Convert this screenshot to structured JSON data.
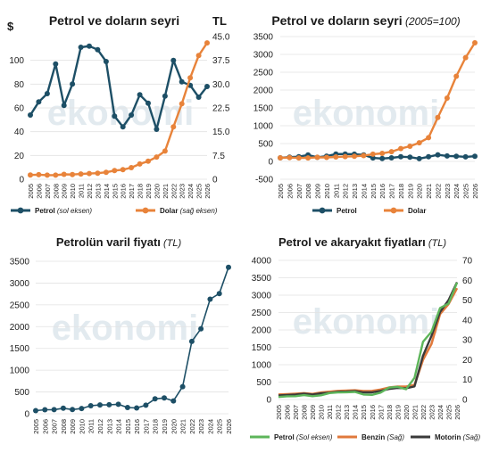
{
  "years": [
    "2005",
    "2006",
    "2007",
    "2008",
    "2009",
    "2010",
    "2011",
    "2012",
    "2013",
    "2014",
    "2015",
    "2016",
    "2017",
    "2018",
    "2019",
    "2020",
    "2021",
    "2022",
    "2023",
    "2024",
    "2025",
    "2026"
  ],
  "watermark": "ekonomi",
  "colors": {
    "petrol_usd": "#1d4f66",
    "dollar": "#e8833a",
    "oil_tl": "#1d4f66",
    "petrol_green": "#5db55a",
    "benzin": "#e0793c",
    "motorin": "#3a3a3a",
    "grid": "#e2e2e2",
    "watermark": "#d9e3ea"
  },
  "chart_data": [
    {
      "id": "c1",
      "type": "line",
      "title": "Petrol ve doların seyri",
      "left_axis_label": "$",
      "right_axis_label": "TL",
      "y_left_ticks": [
        "0",
        "20",
        "40",
        "60",
        "80",
        "100"
      ],
      "y_right_ticks": [
        "0",
        "7.5",
        "15.0",
        "22.5",
        "30.0",
        "37.5",
        "45.0"
      ],
      "ylim_left": [
        0,
        120
      ],
      "ylim_right": [
        0,
        45
      ],
      "x": [
        "2005",
        "2006",
        "2007",
        "2008",
        "2009",
        "2010",
        "2011",
        "2012",
        "2013",
        "2014",
        "2015",
        "2016",
        "2017",
        "2018",
        "2019",
        "2020",
        "2021",
        "2022",
        "2023",
        "2024",
        "2025",
        "2026"
      ],
      "series": [
        {
          "name": "Petrol",
          "name_note": "(sol eksen)",
          "axis": "left",
          "values": [
            54,
            65,
            72,
            97,
            62,
            80,
            111,
            112,
            109,
            99,
            53,
            44,
            54,
            71,
            64,
            42,
            70,
            100,
            82,
            79,
            69,
            78
          ]
        },
        {
          "name": "Dolar",
          "name_note": "(sağ eksen)",
          "axis": "right",
          "values": [
            1.34,
            1.43,
            1.3,
            1.3,
            1.55,
            1.5,
            1.67,
            1.8,
            1.9,
            2.19,
            2.72,
            3.02,
            3.65,
            4.82,
            5.68,
            7.0,
            8.9,
            16.5,
            23.8,
            32.0,
            39.0,
            43.0
          ]
        }
      ]
    },
    {
      "id": "c2",
      "type": "line",
      "title": "Petrol ve doların seyri",
      "title_note": "(2005=100)",
      "y_ticks": [
        "-500",
        "0",
        "500",
        "1000",
        "1500",
        "2000",
        "2500",
        "3000",
        "3500"
      ],
      "ylim": [
        -500,
        3500
      ],
      "x": [
        "2005",
        "2006",
        "2007",
        "2008",
        "2009",
        "2010",
        "2011",
        "2012",
        "2013",
        "2014",
        "2015",
        "2016",
        "2017",
        "2018",
        "2019",
        "2020",
        "2021",
        "2022",
        "2023",
        "2024",
        "2025",
        "2026"
      ],
      "series": [
        {
          "name": "Petrol",
          "values": [
            100,
            120,
            133,
            180,
            115,
            148,
            206,
            207,
            202,
            183,
            98,
            81,
            100,
            131,
            119,
            78,
            130,
            185,
            152,
            146,
            128,
            144
          ]
        },
        {
          "name": "Dolar",
          "values": [
            100,
            107,
            97,
            97,
            116,
            112,
            125,
            134,
            142,
            163,
            203,
            225,
            272,
            360,
            424,
            522,
            664,
            1231,
            1776,
            2388,
            2910,
            3326
          ]
        }
      ]
    },
    {
      "id": "c3",
      "type": "line",
      "title": "Petrolün varil fiyatı",
      "title_note": "(TL)",
      "y_ticks": [
        "0",
        "500",
        "1000",
        "1500",
        "2000",
        "2500",
        "3000",
        "3500"
      ],
      "ylim": [
        0,
        3500
      ],
      "x": [
        "2005",
        "2006",
        "2007",
        "2008",
        "2009",
        "2010",
        "2011",
        "2012",
        "2013",
        "2014",
        "2015",
        "2016",
        "2017",
        "2018",
        "2019",
        "2020",
        "2021",
        "2022",
        "2023",
        "2024",
        "2025",
        "2026"
      ],
      "series": [
        {
          "name": "Petrol",
          "values": [
            72,
            93,
            94,
            126,
            96,
            120,
            185,
            202,
            207,
            217,
            144,
            133,
            197,
            342,
            363,
            294,
            623,
            1660,
            1950,
            2630,
            2760,
            3360
          ]
        }
      ]
    },
    {
      "id": "c4",
      "type": "line",
      "title": "Petrol ve akaryakıt fiyatları",
      "title_note": "(TL)",
      "y_left_ticks": [
        "0",
        "500",
        "1000",
        "1500",
        "2000",
        "2500",
        "3000",
        "3500",
        "4000"
      ],
      "y_right_ticks": [
        "0",
        "10",
        "20",
        "30",
        "40",
        "50",
        "60",
        "70"
      ],
      "ylim_left": [
        0,
        4000
      ],
      "ylim_right": [
        0,
        70
      ],
      "x": [
        "2005",
        "2006",
        "2007",
        "2008",
        "2009",
        "2010",
        "2011",
        "2012",
        "2013",
        "2014",
        "2015",
        "2016",
        "2017",
        "2018",
        "2019",
        "2020",
        "2021",
        "2022",
        "2023",
        "2024",
        "2025",
        "2026"
      ],
      "series": [
        {
          "name": "Petrol",
          "name_note": "(Sol eksen)",
          "axis": "left",
          "values": [
            72,
            93,
            94,
            126,
            96,
            120,
            185,
            202,
            207,
            217,
            144,
            133,
            197,
            342,
            363,
            294,
            623,
            1660,
            1950,
            2630,
            2760,
            3360
          ]
        },
        {
          "name": "Benzin",
          "name_note": "(Sağ)",
          "axis": "right",
          "values": [
            2.5,
            2.7,
            2.9,
            3.2,
            2.8,
            3.5,
            3.9,
            4.3,
            4.5,
            4.6,
            4.2,
            4.3,
            5.0,
            6.0,
            6.5,
            6.5,
            7.3,
            20.0,
            28.0,
            43.0,
            48.0,
            56.0
          ]
        },
        {
          "name": "Motorin",
          "name_note": "(Sağ)",
          "axis": "right",
          "values": [
            2.0,
            2.3,
            2.5,
            2.9,
            2.5,
            3.1,
            3.4,
            3.9,
            4.0,
            4.2,
            3.6,
            3.6,
            4.3,
            5.3,
            5.8,
            5.6,
            6.6,
            22.0,
            32.0,
            44.0,
            50.0,
            59.0
          ]
        }
      ]
    }
  ]
}
